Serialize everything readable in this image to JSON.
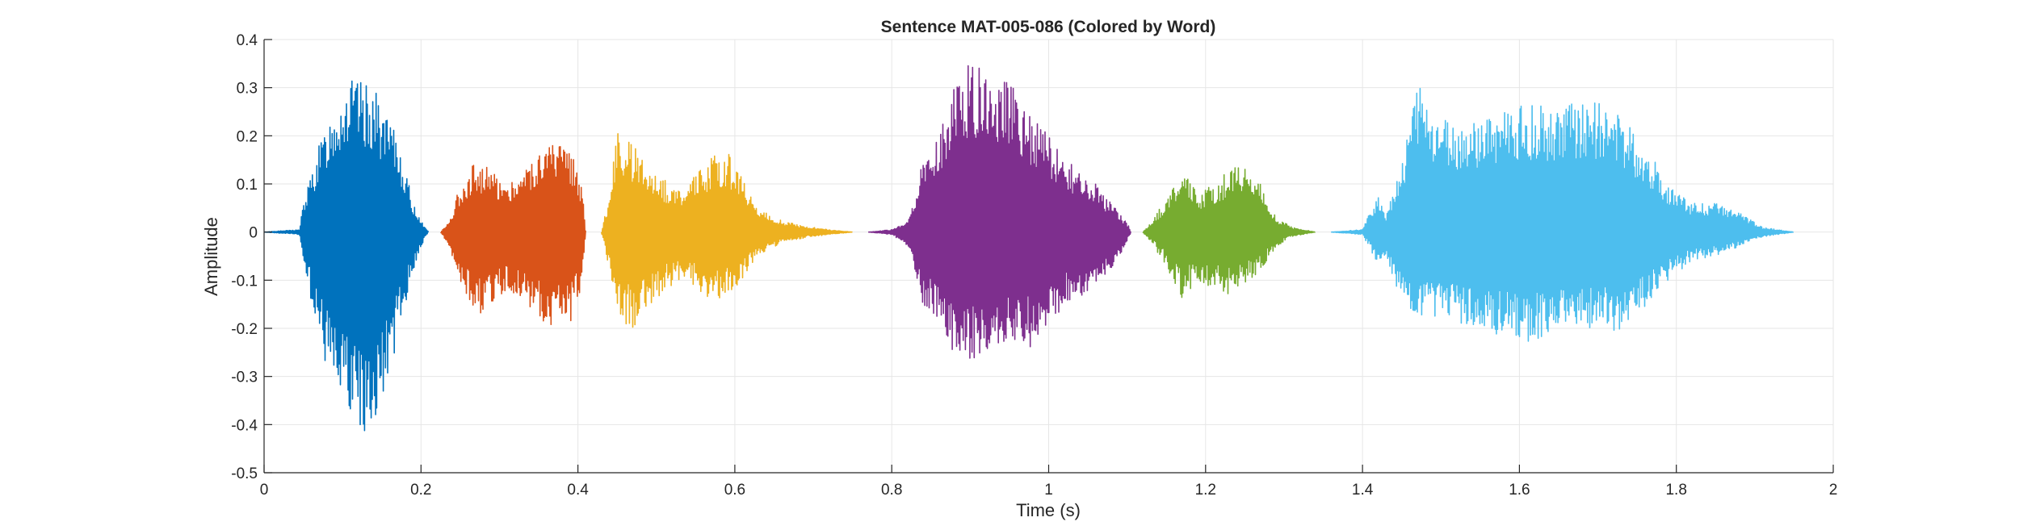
{
  "chart_data": {
    "type": "line",
    "title": "Sentence MAT-005-086 (Colored by Word)",
    "xlabel": "Time (s)",
    "ylabel": "Amplitude",
    "xlim": [
      0,
      2
    ],
    "ylim": [
      -0.5,
      0.4
    ],
    "grid": true,
    "xticks": [
      0,
      0.2,
      0.4,
      0.6,
      0.8,
      1,
      1.2,
      1.4,
      1.6,
      1.8,
      2
    ],
    "xtick_labels": [
      "0",
      "0.2",
      "0.4",
      "0.6",
      "0.8",
      "1",
      "1.2",
      "1.4",
      "1.6",
      "1.8",
      "2"
    ],
    "yticks": [
      -0.5,
      -0.4,
      -0.3,
      -0.2,
      -0.1,
      0,
      0.1,
      0.2,
      0.3,
      0.4
    ],
    "ytick_labels": [
      "-0.5",
      "-0.4",
      "-0.3",
      "-0.2",
      "-0.1",
      "0",
      "0.1",
      "0.2",
      "0.3",
      "0.4"
    ],
    "series": [
      {
        "color": "#0072BD",
        "x": [
          0.0,
          0.045,
          0.05,
          0.07,
          0.09,
          0.11,
          0.125,
          0.14,
          0.155,
          0.17,
          0.19,
          0.205,
          0.21
        ],
        "upper": [
          0.0,
          0.005,
          0.06,
          0.18,
          0.27,
          0.32,
          0.31,
          0.3,
          0.24,
          0.2,
          0.06,
          0.01,
          0.0
        ],
        "lower": [
          0.0,
          -0.005,
          -0.06,
          -0.23,
          -0.34,
          -0.4,
          -0.44,
          -0.4,
          -0.34,
          -0.22,
          -0.08,
          -0.01,
          0.0
        ]
      },
      {
        "color": "#D95319",
        "x": [
          0.225,
          0.235,
          0.25,
          0.27,
          0.29,
          0.31,
          0.33,
          0.35,
          0.37,
          0.39,
          0.405,
          0.41
        ],
        "upper": [
          0.0,
          0.02,
          0.1,
          0.15,
          0.13,
          0.1,
          0.13,
          0.17,
          0.19,
          0.18,
          0.1,
          0.0
        ],
        "lower": [
          0.0,
          -0.03,
          -0.1,
          -0.18,
          -0.15,
          -0.12,
          -0.14,
          -0.18,
          -0.2,
          -0.19,
          -0.12,
          0.0
        ]
      },
      {
        "color": "#EDB120",
        "x": [
          0.43,
          0.44,
          0.45,
          0.47,
          0.49,
          0.51,
          0.53,
          0.55,
          0.57,
          0.59,
          0.61,
          0.63,
          0.65,
          0.68,
          0.72,
          0.75
        ],
        "upper": [
          0.0,
          0.08,
          0.21,
          0.18,
          0.15,
          0.11,
          0.09,
          0.12,
          0.16,
          0.17,
          0.11,
          0.05,
          0.03,
          0.015,
          0.005,
          0.0
        ],
        "lower": [
          0.0,
          -0.08,
          -0.18,
          -0.2,
          -0.16,
          -0.12,
          -0.1,
          -0.11,
          -0.15,
          -0.13,
          -0.1,
          -0.05,
          -0.03,
          -0.015,
          -0.005,
          0.0
        ]
      },
      {
        "color": "#7E2F8E",
        "x": [
          0.77,
          0.8,
          0.82,
          0.84,
          0.86,
          0.88,
          0.9,
          0.92,
          0.94,
          0.96,
          0.98,
          1.0,
          1.02,
          1.04,
          1.06,
          1.08,
          1.1,
          1.105
        ],
        "upper": [
          0.0,
          0.005,
          0.02,
          0.15,
          0.2,
          0.32,
          0.35,
          0.34,
          0.32,
          0.3,
          0.24,
          0.2,
          0.16,
          0.12,
          0.1,
          0.06,
          0.02,
          0.0
        ],
        "lower": [
          0.0,
          -0.005,
          -0.03,
          -0.15,
          -0.18,
          -0.26,
          -0.27,
          -0.25,
          -0.23,
          -0.24,
          -0.24,
          -0.2,
          -0.15,
          -0.14,
          -0.12,
          -0.08,
          -0.02,
          0.0
        ]
      },
      {
        "color": "#77AC30",
        "x": [
          1.12,
          1.13,
          1.15,
          1.17,
          1.19,
          1.21,
          1.23,
          1.25,
          1.27,
          1.29,
          1.31,
          1.34
        ],
        "upper": [
          0.0,
          0.02,
          0.07,
          0.13,
          0.08,
          0.1,
          0.13,
          0.14,
          0.1,
          0.03,
          0.01,
          0.0
        ],
        "lower": [
          0.0,
          -0.02,
          -0.07,
          -0.14,
          -0.1,
          -0.12,
          -0.13,
          -0.11,
          -0.08,
          -0.03,
          -0.01,
          0.0
        ]
      },
      {
        "color": "#4DBEEE",
        "x": [
          1.36,
          1.4,
          1.42,
          1.43,
          1.45,
          1.47,
          1.49,
          1.52,
          1.55,
          1.58,
          1.61,
          1.64,
          1.67,
          1.7,
          1.73,
          1.76,
          1.79,
          1.82,
          1.85,
          1.88,
          1.91,
          1.95
        ],
        "upper": [
          0.0,
          0.005,
          0.08,
          0.04,
          0.15,
          0.31,
          0.25,
          0.22,
          0.23,
          0.26,
          0.27,
          0.26,
          0.27,
          0.27,
          0.24,
          0.18,
          0.1,
          0.06,
          0.06,
          0.04,
          0.01,
          0.0
        ],
        "lower": [
          0.0,
          -0.005,
          -0.07,
          -0.05,
          -0.15,
          -0.18,
          -0.19,
          -0.19,
          -0.21,
          -0.22,
          -0.23,
          -0.21,
          -0.2,
          -0.2,
          -0.21,
          -0.16,
          -0.1,
          -0.06,
          -0.05,
          -0.03,
          -0.01,
          0.0
        ]
      }
    ]
  }
}
